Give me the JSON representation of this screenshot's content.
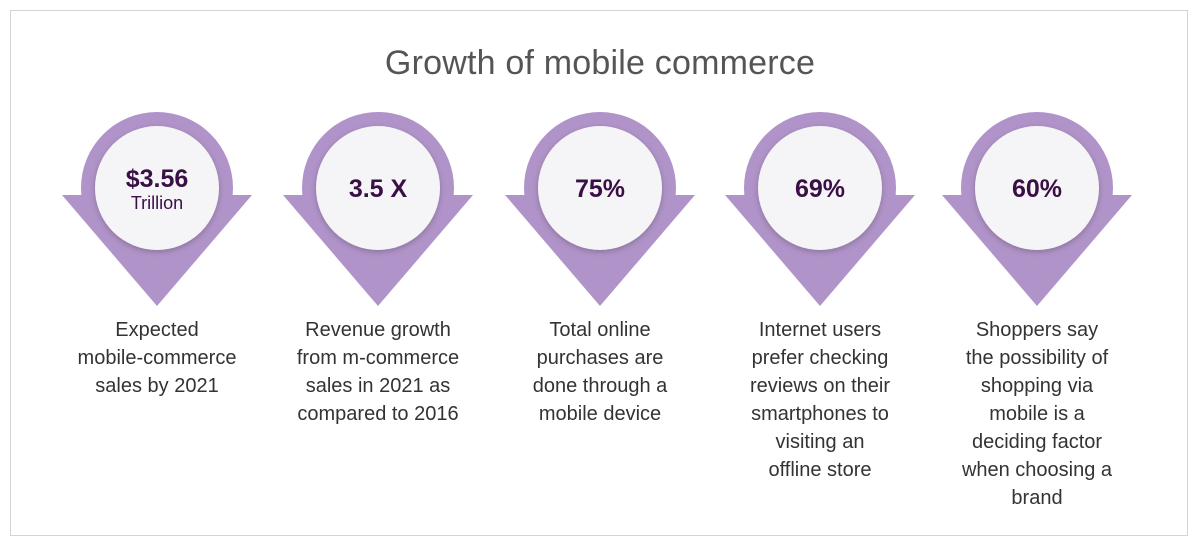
{
  "title": "Growth of mobile commerce",
  "colors": {
    "badge_purple": "#b093c8",
    "circle_fill": "#f5f4f6",
    "value_text": "#3a0f45",
    "body_text": "#333333"
  },
  "stats": [
    {
      "value": "$3.56",
      "unit": "Trillion",
      "lines": [
        "Expected",
        "mobile-commerce",
        "sales by 2021"
      ]
    },
    {
      "value": "3.5 X",
      "lines": [
        "Revenue growth",
        "from m-commerce",
        "sales in 2021 as",
        "compared to 2016"
      ]
    },
    {
      "value": "75%",
      "lines": [
        "Total online",
        "purchases are",
        "done through a",
        "mobile device"
      ]
    },
    {
      "value": "69%",
      "lines": [
        "Internet users",
        "prefer checking",
        "reviews on their",
        "smartphones to",
        "visiting an",
        "offline store"
      ]
    },
    {
      "value": "60%",
      "lines": [
        "Shoppers say",
        "the possibility of",
        "shopping via",
        "mobile is a",
        "deciding factor",
        "when choosing a",
        "brand"
      ]
    }
  ]
}
